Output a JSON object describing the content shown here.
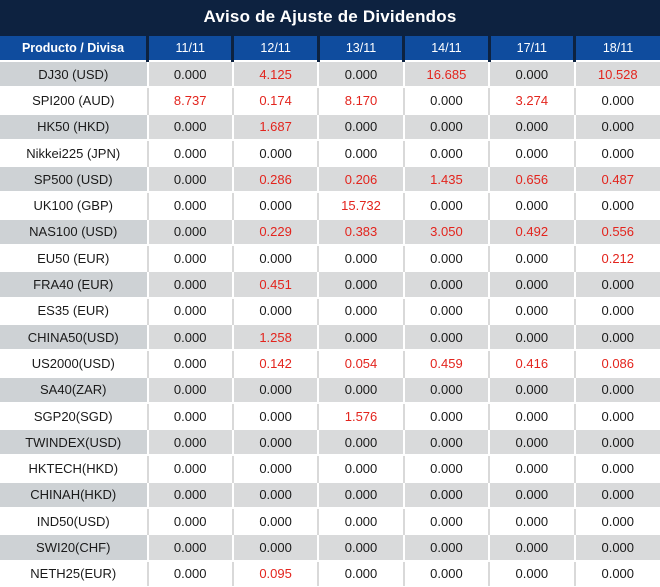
{
  "title": "Aviso de Ajuste de Dividendos",
  "colors": {
    "title_bg": "#0d2240",
    "header_bg": "#0f4c9e",
    "header_divider": "#0d2240",
    "gray_row_product_bg": "#ced2d5",
    "gray_row_data_bg": "#d9dadb",
    "white_row_divider": "#d9d9d9",
    "zero_value_text": "#1a1a1a",
    "nonzero_value_text": "#e3241d"
  },
  "chart_data": {
    "type": "table",
    "title": "Aviso de Ajuste de Dividendos",
    "columns": [
      "Producto / Divisa",
      "11/11",
      "12/11",
      "13/11",
      "14/11",
      "17/11",
      "18/11"
    ],
    "value_format": "3_decimals",
    "nonzero_values_shown_in_red": true,
    "rows": [
      [
        "DJ30 (USD)",
        0.0,
        4.125,
        0.0,
        16.685,
        0.0,
        10.528
      ],
      [
        "SPI200 (AUD)",
        8.737,
        0.174,
        8.17,
        0.0,
        3.274,
        0.0
      ],
      [
        "HK50 (HKD)",
        0.0,
        1.687,
        0.0,
        0.0,
        0.0,
        0.0
      ],
      [
        "Nikkei225 (JPN)",
        0.0,
        0.0,
        0.0,
        0.0,
        0.0,
        0.0
      ],
      [
        "SP500 (USD)",
        0.0,
        0.286,
        0.206,
        1.435,
        0.656,
        0.487
      ],
      [
        "UK100 (GBP)",
        0.0,
        0.0,
        15.732,
        0.0,
        0.0,
        0.0
      ],
      [
        "NAS100 (USD)",
        0.0,
        0.229,
        0.383,
        3.05,
        0.492,
        0.556
      ],
      [
        "EU50 (EUR)",
        0.0,
        0.0,
        0.0,
        0.0,
        0.0,
        0.212
      ],
      [
        "FRA40 (EUR)",
        0.0,
        0.451,
        0.0,
        0.0,
        0.0,
        0.0
      ],
      [
        "ES35 (EUR)",
        0.0,
        0.0,
        0.0,
        0.0,
        0.0,
        0.0
      ],
      [
        "CHINA50(USD)",
        0.0,
        1.258,
        0.0,
        0.0,
        0.0,
        0.0
      ],
      [
        "US2000(USD)",
        0.0,
        0.142,
        0.054,
        0.459,
        0.416,
        0.086
      ],
      [
        "SA40(ZAR)",
        0.0,
        0.0,
        0.0,
        0.0,
        0.0,
        0.0
      ],
      [
        "SGP20(SGD)",
        0.0,
        0.0,
        1.576,
        0.0,
        0.0,
        0.0
      ],
      [
        "TWINDEX(USD)",
        0.0,
        0.0,
        0.0,
        0.0,
        0.0,
        0.0
      ],
      [
        "HKTECH(HKD)",
        0.0,
        0.0,
        0.0,
        0.0,
        0.0,
        0.0
      ],
      [
        "CHINAH(HKD)",
        0.0,
        0.0,
        0.0,
        0.0,
        0.0,
        0.0
      ],
      [
        "IND50(USD)",
        0.0,
        0.0,
        0.0,
        0.0,
        0.0,
        0.0
      ],
      [
        "SWI20(CHF)",
        0.0,
        0.0,
        0.0,
        0.0,
        0.0,
        0.0
      ],
      [
        "NETH25(EUR)",
        0.0,
        0.095,
        0.0,
        0.0,
        0.0,
        0.0
      ]
    ]
  }
}
